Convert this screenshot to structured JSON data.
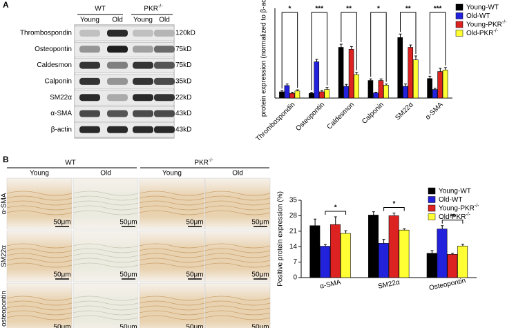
{
  "chart_data": [
    {
      "type": "bar",
      "ylabel": "protein expression (normalized to β-actin)",
      "categories": [
        "Thrombospondin",
        "Osteopontin",
        "Caldesmon",
        "Calponin",
        "SM22α",
        "α-SMA"
      ],
      "ylim": [
        0,
        2.3
      ],
      "series": [
        {
          "name": "Young-WT",
          "color": "#000000",
          "values": [
            0.16,
            0.12,
            1.3,
            0.45,
            1.55,
            0.5
          ],
          "errors": [
            0.03,
            0.03,
            0.08,
            0.04,
            0.09,
            0.06
          ]
        },
        {
          "name": "Old-WT",
          "color": "#2222dd",
          "values": [
            0.32,
            0.93,
            0.3,
            0.13,
            0.3,
            0.22
          ],
          "errors": [
            0.04,
            0.06,
            0.05,
            0.02,
            0.06,
            0.03
          ]
        },
        {
          "name": "Young-PKR-/-",
          "color": "#dd2222",
          "values": [
            0.12,
            0.16,
            1.25,
            0.45,
            1.3,
            0.68
          ],
          "errors": [
            0.03,
            0.03,
            0.07,
            0.04,
            0.06,
            0.08
          ]
        },
        {
          "name": "Old-PKR-/-",
          "color": "#ffff33",
          "values": [
            0.18,
            0.22,
            0.6,
            0.33,
            0.98,
            0.72
          ],
          "errors": [
            0.03,
            0.05,
            0.06,
            0.03,
            0.1,
            0.06
          ]
        }
      ],
      "significance": [
        "*",
        "***",
        "**",
        "*",
        "**",
        "***"
      ]
    },
    {
      "type": "bar",
      "ylabel": "Positive protein expression (%)",
      "categories": [
        "α-SMA",
        "SM22α",
        "Osteopontin"
      ],
      "ylim": [
        0,
        35
      ],
      "yticks": [
        0,
        7,
        14,
        21,
        28,
        35
      ],
      "series": [
        {
          "name": "Young-WT",
          "color": "#000000",
          "values": [
            23.5,
            28.3,
            11
          ],
          "errors": [
            3,
            1.5,
            1.2
          ]
        },
        {
          "name": "Old-WT",
          "color": "#2222dd",
          "values": [
            14.2,
            15.5,
            22
          ],
          "errors": [
            0.8,
            1.8,
            1.5
          ]
        },
        {
          "name": "Young-PKR-/-",
          "color": "#dd2222",
          "values": [
            24,
            28,
            10.5
          ],
          "errors": [
            3.5,
            1.2,
            0.5
          ]
        },
        {
          "name": "Old-PKR-/-",
          "color": "#ffff33",
          "values": [
            20,
            21.5,
            14.3
          ],
          "errors": [
            1.2,
            0.6,
            0.8
          ]
        }
      ],
      "significance": [
        "*",
        "*",
        "**"
      ]
    }
  ],
  "panel_a": {
    "letter": "A",
    "groups": [
      "WT",
      "PKR-/-"
    ],
    "lanes": [
      "Young",
      "Old",
      "Young",
      "Old"
    ],
    "proteins": [
      "Thrombospondin",
      "Osteopontin",
      "Caldesmon",
      "Calponin",
      "SM22α",
      "α-SMA",
      "β-actin"
    ],
    "sizes": [
      "120kD",
      "75kD",
      "75kD",
      "35kD",
      "22kD",
      "43kD",
      "43kD"
    ]
  },
  "panel_b": {
    "letter": "B",
    "groups": [
      "WT",
      "PKR-/-"
    ],
    "columns": [
      "Young",
      "Old",
      "Young",
      "Old"
    ],
    "rows": [
      "α-SMA",
      "SM22α",
      "osteopontin"
    ],
    "scale": "50μm"
  }
}
